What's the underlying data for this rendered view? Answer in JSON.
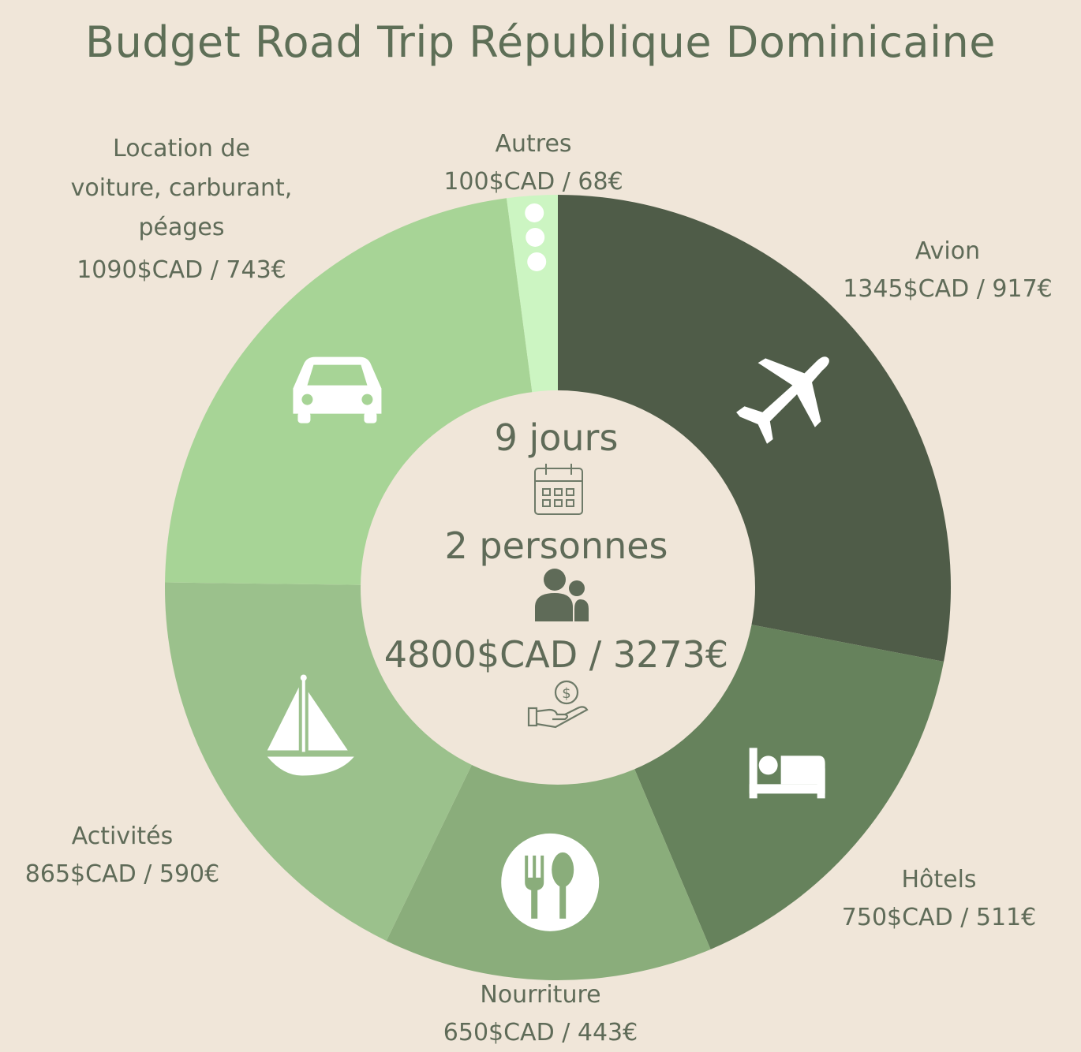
{
  "title": "Budget Road Trip République Dominicaine",
  "center": {
    "days": "9 jours",
    "people": "2 personnes",
    "total": "4800$CAD / 3273€",
    "icons": [
      "calendar-icon",
      "people-icon",
      "money-hand-icon"
    ]
  },
  "chart_data": {
    "type": "pie",
    "style": "donut",
    "unit": "$CAD",
    "slices": [
      {
        "name": "Avion",
        "value": 1345,
        "value_eur": 917,
        "amount": "1345$CAD / 917€",
        "color": "#4f5c48",
        "icon": "airplane-icon"
      },
      {
        "name": "Hôtels",
        "value": 750,
        "value_eur": 511,
        "amount": "750$CAD / 511€",
        "color": "#66825c",
        "icon": "bed-icon"
      },
      {
        "name": "Nourriture",
        "value": 650,
        "value_eur": 443,
        "amount": "650$CAD / 443€",
        "color": "#8aad7b",
        "icon": "plate-utensils-icon"
      },
      {
        "name": "Activités",
        "value": 865,
        "value_eur": 590,
        "amount": "865$CAD / 590€",
        "color": "#9bc18c",
        "icon": "sailboat-icon"
      },
      {
        "name": "Location de voiture, carburant, péages",
        "value": 1090,
        "value_eur": 743,
        "amount": "1090$CAD / 743€",
        "color": "#a7d496",
        "icon": "car-icon"
      },
      {
        "name": "Autres",
        "value": 100,
        "value_eur": 68,
        "amount": "100$CAD / 68€",
        "color": "#ccf5c2",
        "icon": "more-dots-icon"
      }
    ]
  }
}
